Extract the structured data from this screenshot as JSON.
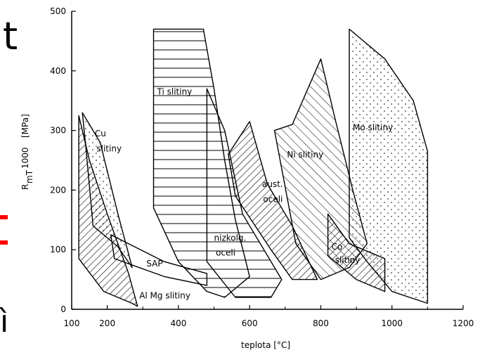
{
  "chart_data": {
    "type": "area",
    "xlabel": "teplota [°C]",
    "ylabel": "R",
    "ylabel_sub": "mT",
    "ylabel_sup": "1000",
    "ylabel_unit": "[MPa]",
    "xlim": [
      100,
      1200
    ],
    "ylim": [
      0,
      500
    ],
    "x_ticks": [
      "100",
      "200",
      "400",
      "600",
      "800",
      "1000",
      "1200"
    ],
    "y_ticks": [
      "0",
      "100",
      "200",
      "300",
      "400",
      "500"
    ],
    "grid": false,
    "series": [
      {
        "name": "Cu slitiny",
        "fill": "dots",
        "points": [
          [
            130,
            330
          ],
          [
            180,
            280
          ],
          [
            230,
            160
          ],
          [
            270,
            70
          ],
          [
            230,
            105
          ],
          [
            160,
            140
          ],
          [
            140,
            270
          ]
        ]
      },
      {
        "name": "Al Mg slitiny",
        "fill": "hatch",
        "points": [
          [
            120,
            325
          ],
          [
            150,
            250
          ],
          [
            200,
            160
          ],
          [
            260,
            60
          ],
          [
            285,
            5
          ],
          [
            270,
            10
          ],
          [
            190,
            30
          ],
          [
            120,
            85
          ]
        ]
      },
      {
        "name": "SAP",
        "fill": "none",
        "points": [
          [
            210,
            125
          ],
          [
            360,
            80
          ],
          [
            480,
            60
          ],
          [
            480,
            40
          ],
          [
            360,
            55
          ],
          [
            220,
            85
          ]
        ]
      },
      {
        "name": "Ti slitiny",
        "fill": "horizontal",
        "points": [
          [
            330,
            470
          ],
          [
            470,
            470
          ],
          [
            500,
            370
          ],
          [
            530,
            250
          ],
          [
            560,
            150
          ],
          [
            600,
            55
          ],
          [
            530,
            20
          ],
          [
            480,
            30
          ],
          [
            400,
            80
          ],
          [
            330,
            170
          ]
        ]
      },
      {
        "name": "nizkolg. oceli",
        "fill": "horizontal",
        "points": [
          [
            480,
            370
          ],
          [
            530,
            300
          ],
          [
            580,
            160
          ],
          [
            690,
            50
          ],
          [
            660,
            20
          ],
          [
            560,
            20
          ],
          [
            480,
            80
          ]
        ]
      },
      {
        "name": "aust. oceli",
        "fill": "hatch",
        "points": [
          [
            540,
            260
          ],
          [
            600,
            315
          ],
          [
            650,
            210
          ],
          [
            720,
            140
          ],
          [
            790,
            50
          ],
          [
            720,
            50
          ],
          [
            660,
            100
          ],
          [
            560,
            190
          ]
        ]
      },
      {
        "name": "Ni slitiny",
        "fill": "hatch-back",
        "points": [
          [
            670,
            300
          ],
          [
            720,
            310
          ],
          [
            800,
            420
          ],
          [
            840,
            320
          ],
          [
            890,
            200
          ],
          [
            930,
            110
          ],
          [
            880,
            70
          ],
          [
            800,
            50
          ],
          [
            730,
            110
          ]
        ]
      },
      {
        "name": "Mo slitiny",
        "fill": "dots",
        "points": [
          [
            880,
            470
          ],
          [
            980,
            420
          ],
          [
            1060,
            350
          ],
          [
            1100,
            265
          ],
          [
            1100,
            10
          ],
          [
            1000,
            30
          ],
          [
            930,
            80
          ],
          [
            880,
            120
          ]
        ]
      },
      {
        "name": "Co slitiny",
        "fill": "hatch",
        "points": [
          [
            820,
            160
          ],
          [
            880,
            110
          ],
          [
            980,
            85
          ],
          [
            980,
            30
          ],
          [
            900,
            50
          ],
          [
            820,
            90
          ]
        ]
      }
    ],
    "annotations": [
      {
        "text": "Cu",
        "x": 165,
        "y": 290
      },
      {
        "text": "slitiny",
        "x": 170,
        "y": 265
      },
      {
        "text": "Ti slitiny",
        "x": 340,
        "y": 360
      },
      {
        "text": "Mo slitiny",
        "x": 890,
        "y": 300
      },
      {
        "text": "Ni slitiny",
        "x": 705,
        "y": 255
      },
      {
        "text": "aust.",
        "x": 635,
        "y": 205
      },
      {
        "text": "oceli",
        "x": 638,
        "y": 180
      },
      {
        "text": "nizkolg.",
        "x": 500,
        "y": 115
      },
      {
        "text": "oceli",
        "x": 505,
        "y": 90
      },
      {
        "text": "SAP",
        "x": 310,
        "y": 72
      },
      {
        "text": "Al Mg slitiny",
        "x": 290,
        "y": 18
      },
      {
        "text": "Co",
        "x": 830,
        "y": 100
      },
      {
        "text": "slitiny",
        "x": 840,
        "y": 78
      }
    ],
    "page_edge_marks": [
      "t",
      "-",
      "-",
      "ì"
    ],
    "colors": {
      "ink": "#000000",
      "background": "#ffffff",
      "mark": "#ff0000"
    }
  }
}
